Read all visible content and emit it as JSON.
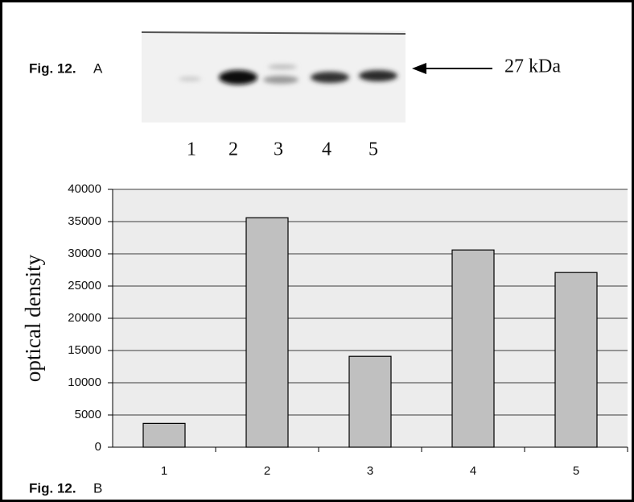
{
  "panel_a": {
    "label": "Fig. 12.",
    "panel": "A",
    "lanes": [
      "1",
      "2",
      "3",
      "4",
      "5"
    ],
    "marker": "27 kDa"
  },
  "panel_b": {
    "label": "Fig. 12.",
    "panel": "B"
  },
  "chart_data": {
    "type": "bar",
    "y_label": "optical density",
    "categories": [
      "1",
      "2",
      "3",
      "4",
      "5"
    ],
    "values": [
      3700,
      35600,
      14100,
      30600,
      27100
    ],
    "color": "#c0c0c0",
    "ylim": [
      0,
      40000
    ],
    "yticks": [
      0,
      5000,
      10000,
      15000,
      20000,
      25000,
      30000,
      35000,
      40000
    ],
    "grid": true
  }
}
